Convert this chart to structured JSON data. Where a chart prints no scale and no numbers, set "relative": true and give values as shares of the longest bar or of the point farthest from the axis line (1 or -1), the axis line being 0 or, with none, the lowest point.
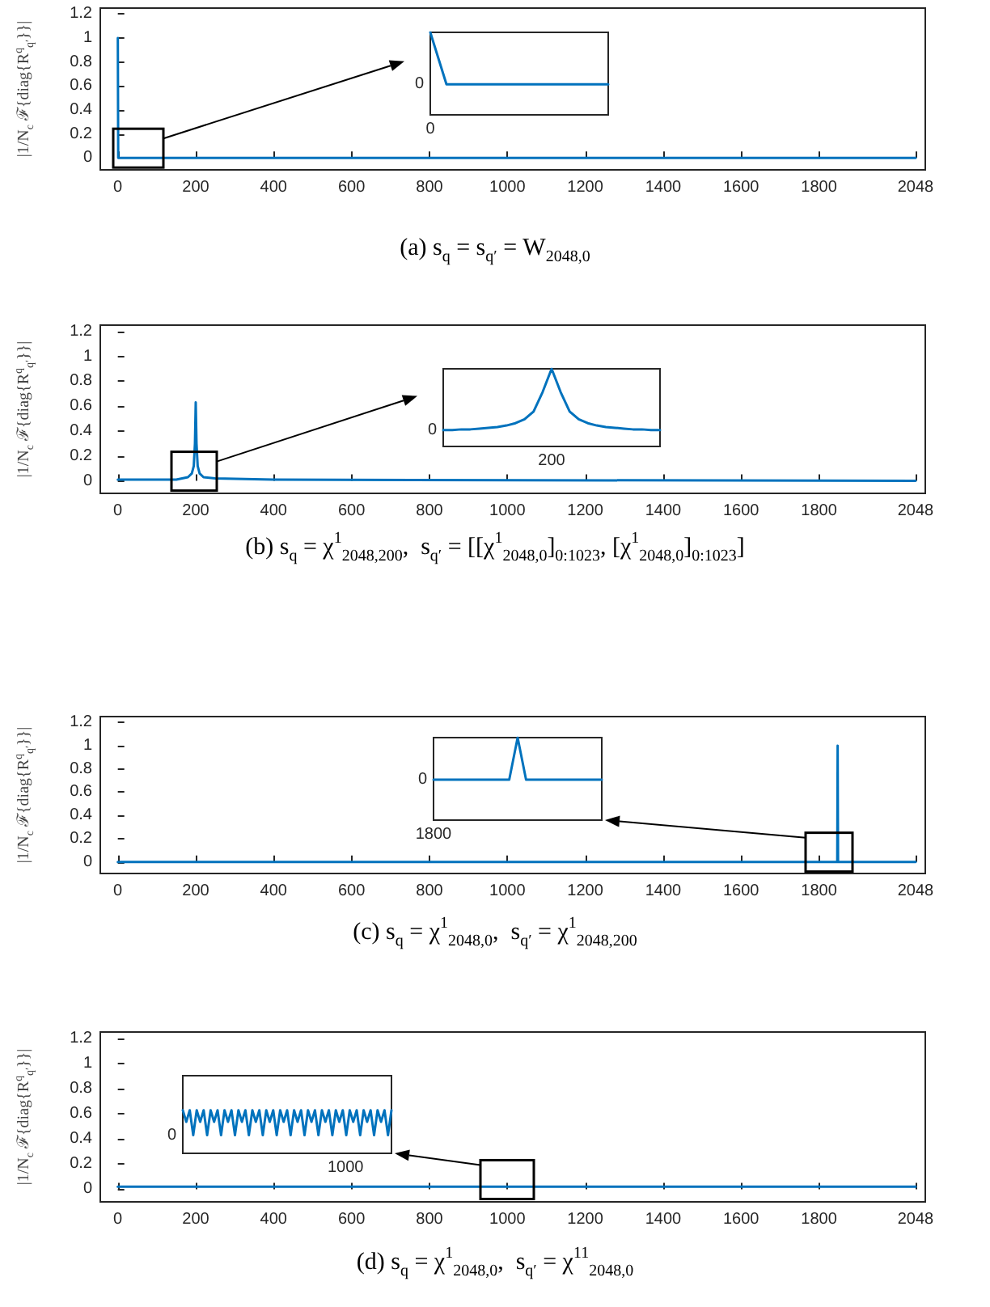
{
  "chart_data": [
    {
      "type": "line",
      "title": "(a) s$_{q}$ = s$_{q′}$ = W$_{2048,0}$",
      "ylabel": "|1/N$_{c}$ ℱ{diag{R$^{q}$$_{q′}$}}|",
      "xlim": [
        -45,
        2073
      ],
      "ylim": [
        -0.1,
        1.25
      ],
      "xticks": [
        0,
        200,
        400,
        600,
        800,
        1000,
        1200,
        1400,
        1600,
        1800,
        2048
      ],
      "yticks": [
        0,
        0.2,
        0.4,
        0.6,
        0.8,
        1,
        1.2
      ],
      "series": [
        {
          "color": "#0072bd",
          "x": [
            0,
            1,
            2048
          ],
          "values": [
            1,
            0,
            0
          ]
        }
      ]
    },
    {
      "type": "line",
      "relative": true,
      "annotations": [
        "0",
        "0"
      ],
      "categories": [
        null,
        null,
        null,
        null,
        null,
        null,
        null,
        null,
        null,
        null,
        null,
        null
      ],
      "series": [
        {
          "color": "#0072bd",
          "values": [
            1,
            0.37,
            0.37,
            0.37,
            0.37,
            0.37,
            0.37,
            0.37,
            0.37,
            0.37,
            0.37,
            0.37
          ]
        }
      ]
    },
    {
      "type": "line",
      "title": "(b) s$_{q}$ = χ$^{1}$$_{2048,200}$,  s$_{q′}$ = [[χ$^{1}$$_{2048,0}$]$_{0:1023}$, [χ$^{1}$$_{2048,0}$]$_{0:1023}$]",
      "ylabel": "|1/N$_{c}$ ℱ{diag{R$^{q}$$_{q′}$}}|",
      "xlim": [
        -45,
        2073
      ],
      "ylim": [
        -0.1,
        1.25
      ],
      "xticks": [
        0,
        200,
        400,
        600,
        800,
        1000,
        1200,
        1400,
        1600,
        1800,
        2048
      ],
      "yticks": [
        0,
        0.2,
        0.4,
        0.6,
        0.8,
        1,
        1.2
      ],
      "series": [
        {
          "color": "#0072bd",
          "x": [
            0,
            150,
            180,
            190,
            195,
            198,
            200,
            202,
            205,
            210,
            220,
            250,
            400,
            2048
          ],
          "values": [
            0.01,
            0.01,
            0.03,
            0.06,
            0.12,
            0.3,
            0.63,
            0.3,
            0.12,
            0.06,
            0.03,
            0.02,
            0.01,
            0
          ]
        }
      ]
    },
    {
      "type": "line",
      "relative": true,
      "annotations": [
        "0",
        "200"
      ],
      "categories": [
        null,
        null,
        null,
        null,
        null,
        null,
        null,
        null,
        null,
        null,
        null,
        null,
        null,
        null,
        null,
        null,
        null,
        null,
        null,
        null,
        null,
        null,
        null,
        null,
        null
      ],
      "series": [
        {
          "color": "#0072bd",
          "values": [
            0.21,
            0.21,
            0.22,
            0.22,
            0.23,
            0.24,
            0.25,
            0.27,
            0.3,
            0.35,
            0.45,
            0.7,
            1,
            0.7,
            0.45,
            0.35,
            0.3,
            0.27,
            0.25,
            0.24,
            0.23,
            0.22,
            0.22,
            0.21,
            0.21
          ]
        }
      ]
    },
    {
      "type": "line",
      "title": "(c) s$_{q}$ = χ$^{1}$$_{2048,0}$,  s$_{q′}$ = χ$^{1}$$_{2048,200}$",
      "ylabel": "|1/N$_{c}$ ℱ{diag{R$^{q}$$_{q′}$}}|",
      "xlim": [
        -45,
        2073
      ],
      "ylim": [
        -0.1,
        1.25
      ],
      "xticks": [
        0,
        200,
        400,
        600,
        800,
        1000,
        1200,
        1400,
        1600,
        1800,
        2048
      ],
      "yticks": [
        0,
        0.2,
        0.4,
        0.6,
        0.8,
        1,
        1.2
      ],
      "series": [
        {
          "color": "#0072bd",
          "x": [
            0,
            1847,
            1848,
            1849,
            2048
          ],
          "values": [
            0,
            0,
            1,
            0,
            0
          ]
        }
      ]
    },
    {
      "type": "line",
      "relative": true,
      "annotations": [
        "0",
        "1800"
      ],
      "categories": [
        null,
        null,
        null,
        null,
        null,
        null,
        null,
        null,
        null,
        null,
        null,
        null,
        null,
        null,
        null,
        null,
        null,
        null,
        null,
        null,
        null
      ],
      "series": [
        {
          "color": "#0072bd",
          "values": [
            0.49,
            0.49,
            0.49,
            0.49,
            0.49,
            0.49,
            0.49,
            0.49,
            0.49,
            0.49,
            1,
            0.49,
            0.49,
            0.49,
            0.49,
            0.49,
            0.49,
            0.49,
            0.49,
            0.49,
            0.49
          ]
        }
      ]
    },
    {
      "type": "line",
      "title": "(d) s$_{q}$ = χ$^{1}$$_{2048,0}$,  s$_{q′}$ = χ$^{11}$$_{2048,0}$",
      "ylabel": "|1/N$_{c}$ ℱ{diag{R$^{q}$$_{q′}$}}|",
      "xlim": [
        -45,
        2073
      ],
      "ylim": [
        -0.1,
        1.25
      ],
      "xticks": [
        0,
        200,
        400,
        600,
        800,
        1000,
        1200,
        1400,
        1600,
        1800,
        2048
      ],
      "yticks": [
        0,
        0.2,
        0.4,
        0.6,
        0.8,
        1,
        1.2
      ],
      "series": [
        {
          "color": "#0072bd",
          "x": [
            0,
            2048
          ],
          "values": [
            0.02,
            0.02
          ]
        }
      ]
    },
    {
      "type": "line",
      "relative": true,
      "annotations": [
        "0",
        "1000"
      ],
      "categories": [
        null,
        null,
        null,
        null,
        null,
        null,
        null,
        null,
        null,
        null,
        null,
        null,
        null,
        null,
        null,
        null,
        null,
        null,
        null,
        null,
        null,
        null,
        null,
        null,
        null,
        null,
        null,
        null,
        null,
        null,
        null,
        null,
        null,
        null,
        null,
        null,
        null,
        null,
        null,
        null,
        null,
        null,
        null,
        null,
        null,
        null,
        null,
        null,
        null,
        null,
        null,
        null,
        null,
        null,
        null,
        null,
        null,
        null,
        null,
        null,
        null
      ],
      "series": [
        {
          "color": "#0072bd",
          "values": [
            1,
            0.73,
            1,
            0.42,
            1,
            0.73,
            1,
            0.42,
            1,
            0.73,
            1,
            0.42,
            1,
            0.73,
            1,
            0.42,
            1,
            0.73,
            1,
            0.42,
            1,
            0.73,
            1,
            0.42,
            1,
            0.73,
            1,
            0.42,
            1,
            0.73,
            1,
            0.42,
            1,
            0.73,
            1,
            0.42,
            1,
            0.73,
            1,
            0.42,
            1,
            0.73,
            1,
            0.42,
            1,
            0.73,
            1,
            0.42,
            1,
            0.73,
            1,
            0.42,
            1,
            0.73,
            1,
            0.42,
            1,
            0.73,
            1,
            0.42,
            1
          ]
        }
      ]
    }
  ]
}
